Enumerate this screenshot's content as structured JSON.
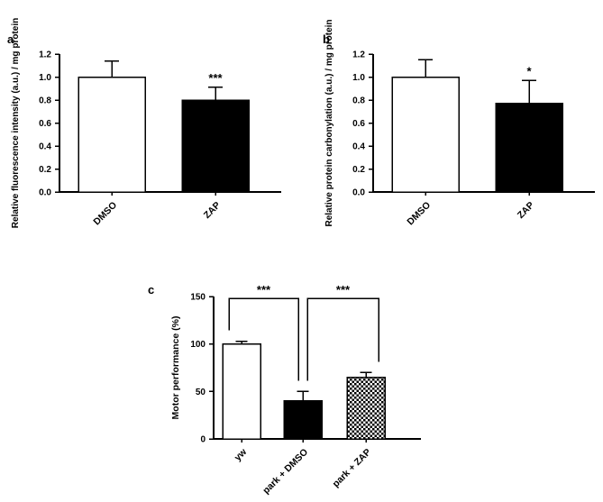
{
  "colors": {
    "axis": "#000000",
    "bar_outline": "#000000",
    "background": "#ffffff"
  },
  "chart_data": [
    {
      "type": "bar",
      "panel": "a",
      "title": "",
      "ylabel": "Relative fluorescence intensity (a.u.) / mg protein",
      "xlabel": "",
      "categories": [
        "DMSO",
        "ZAP"
      ],
      "values": [
        1.0,
        0.8
      ],
      "errors": [
        0.14,
        0.11
      ],
      "bar_fill": [
        "white",
        "black"
      ],
      "ylim": [
        0,
        1.2
      ],
      "ytick_labels": [
        "0.0",
        "0.2",
        "0.4",
        "0.6",
        "0.8",
        "1.0",
        "1.2"
      ],
      "grid": false,
      "legend": "none",
      "annotations": [
        {
          "label": "***",
          "category": "ZAP"
        }
      ]
    },
    {
      "type": "bar",
      "panel": "b",
      "title": "",
      "ylabel": "Relative protein carbonylation (a.u.) / mg protein",
      "xlabel": "",
      "categories": [
        "DMSO",
        "ZAP"
      ],
      "values": [
        1.0,
        0.77
      ],
      "errors": [
        0.15,
        0.2
      ],
      "bar_fill": [
        "white",
        "black"
      ],
      "ylim": [
        0,
        1.2
      ],
      "ytick_labels": [
        "0.0",
        "0.2",
        "0.4",
        "0.6",
        "0.8",
        "1.0",
        "1.2"
      ],
      "grid": false,
      "legend": "none",
      "annotations": [
        {
          "label": "*",
          "category": "ZAP"
        }
      ]
    },
    {
      "type": "bar",
      "panel": "c",
      "title": "",
      "ylabel": "Motor performance (%)",
      "xlabel": "",
      "categories": [
        "yw",
        "park + DMSO",
        "park + ZAP"
      ],
      "values": [
        100,
        40,
        65
      ],
      "errors": [
        3,
        10,
        5
      ],
      "bar_fill": [
        "white",
        "black",
        "checker"
      ],
      "ylim": [
        0,
        150
      ],
      "ytick_labels": [
        "0",
        "50",
        "100",
        "150"
      ],
      "grid": false,
      "legend": "none",
      "brackets": [
        {
          "label": "***",
          "from": "yw",
          "to": "park + DMSO"
        },
        {
          "label": "***",
          "from": "park + DMSO",
          "to": "park + ZAP"
        }
      ]
    }
  ]
}
